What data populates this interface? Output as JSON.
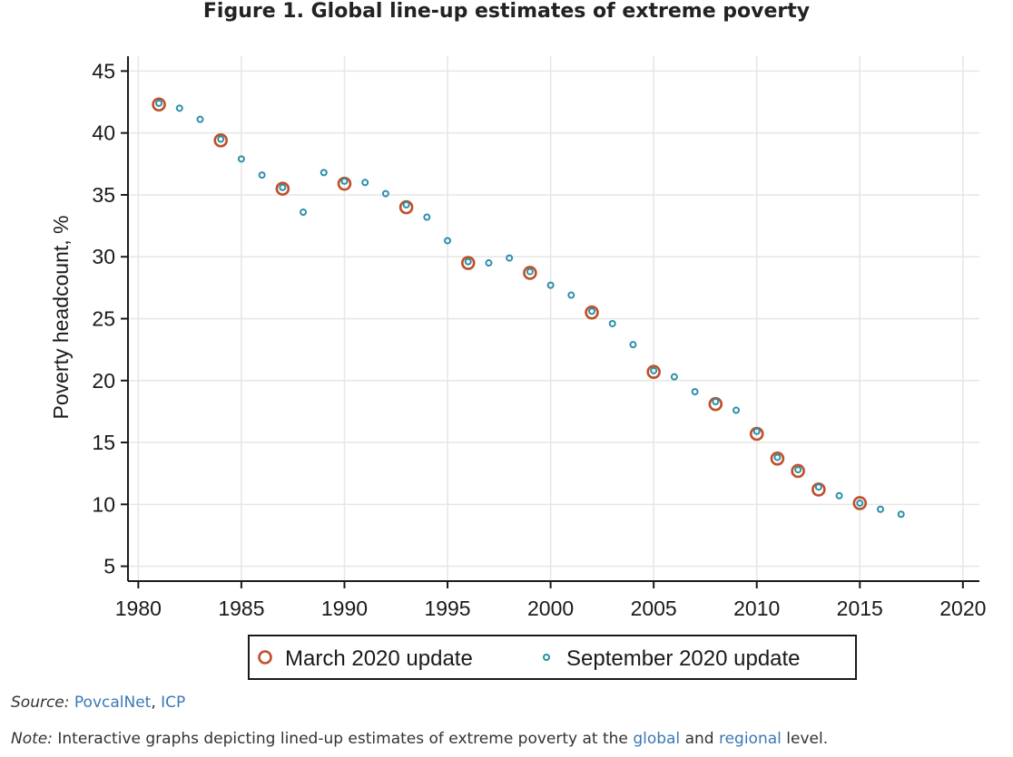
{
  "chart_data": {
    "type": "scatter",
    "title": "Figure 1. Global line-up estimates of extreme poverty",
    "xlabel": "",
    "ylabel": "Poverty headcount, %",
    "xlim": [
      1979.5,
      2020.8
    ],
    "ylim": [
      3.8,
      46.2
    ],
    "xticks": [
      1980,
      1985,
      1990,
      1995,
      2000,
      2005,
      2010,
      2015,
      2020
    ],
    "yticks": [
      5,
      10,
      15,
      20,
      25,
      30,
      35,
      40,
      45
    ],
    "grid": true,
    "legend_position": "bottom",
    "series": [
      {
        "name": "March 2020 update",
        "marker": "hollow-circle",
        "color": "#c0502a",
        "x": [
          1981,
          1984,
          1987,
          1990,
          1993,
          1996,
          1999,
          2002,
          2005,
          2008,
          2010,
          2011,
          2012,
          2013,
          2015
        ],
        "y": [
          42.3,
          39.4,
          35.5,
          35.9,
          34.0,
          29.5,
          28.7,
          25.5,
          20.7,
          18.1,
          15.7,
          13.7,
          12.7,
          11.2,
          10.1
        ]
      },
      {
        "name": "September 2020 update",
        "marker": "small-hollow-circle",
        "color": "#2a8fa8",
        "x": [
          1981,
          1982,
          1983,
          1984,
          1985,
          1986,
          1987,
          1988,
          1989,
          1990,
          1991,
          1992,
          1993,
          1994,
          1995,
          1996,
          1997,
          1998,
          1999,
          2000,
          2001,
          2002,
          2003,
          2004,
          2005,
          2006,
          2007,
          2008,
          2009,
          2010,
          2011,
          2012,
          2013,
          2014,
          2015,
          2016,
          2017
        ],
        "y": [
          42.4,
          42.0,
          41.1,
          39.5,
          37.9,
          36.6,
          35.6,
          33.6,
          36.8,
          36.1,
          36.0,
          35.1,
          34.2,
          33.2,
          31.3,
          29.6,
          29.5,
          29.9,
          28.8,
          27.7,
          26.9,
          25.6,
          24.6,
          22.9,
          20.8,
          20.3,
          19.1,
          18.3,
          17.6,
          15.9,
          13.8,
          12.8,
          11.4,
          10.7,
          10.1,
          9.6,
          9.2
        ]
      }
    ]
  },
  "footer": {
    "source_label": "Source:",
    "source_link1": "PovcalNet",
    "source_sep": ",",
    "source_link2": "ICP",
    "note_label": "Note:",
    "note_text1": "Interactive graphs depicting lined-up estimates of extreme poverty at the",
    "note_link1": "global",
    "note_text2": "and",
    "note_link2": "regional",
    "note_text3": "level."
  }
}
